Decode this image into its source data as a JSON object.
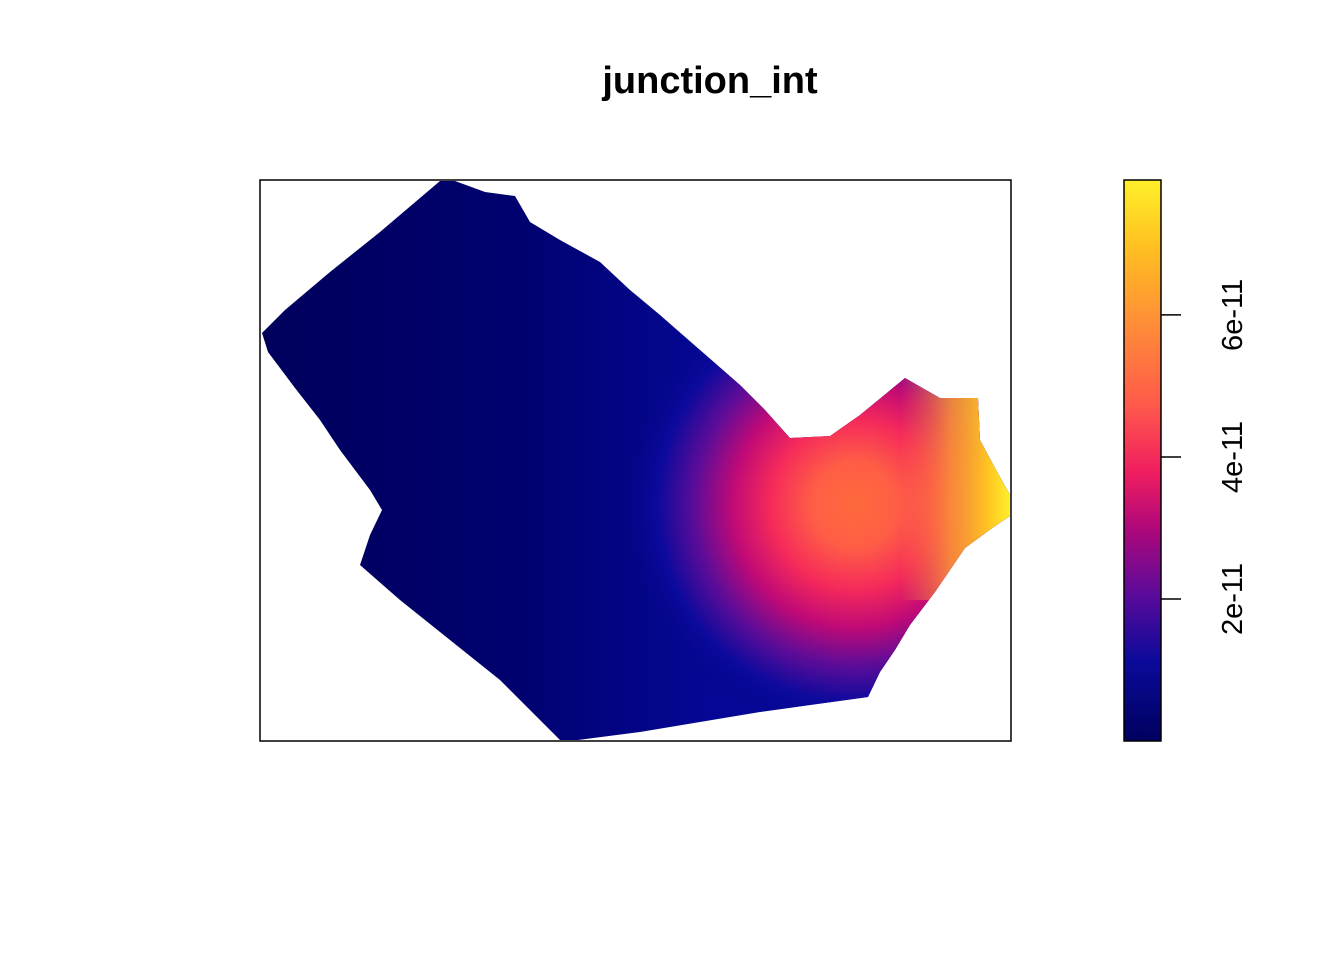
{
  "chart_data": {
    "type": "heatmap",
    "title": "junction_int",
    "xlabel": "",
    "ylabel": "",
    "axes_shown": false,
    "legend": {
      "type": "colorbar",
      "placement": "right",
      "range": [
        0,
        7.9e-11
      ],
      "ticks": [
        2e-11,
        4e-11,
        6e-11
      ],
      "tick_labels": [
        "2e-11",
        "4e-11",
        "6e-11"
      ]
    },
    "colormap": [
      "#00005E",
      "#0A0A9A",
      "#5A0A9A",
      "#B0087A",
      "#F01E60",
      "#FF5A4A",
      "#FF8C38",
      "#FFC020",
      "#FFF02A"
    ],
    "raster": {
      "description_of_field": "near zero over the western body, rising toward a hotspot in the east",
      "low_value": 1e-12,
      "hotspot_value": 5.3e-11,
      "max_value": 7.9e-11
    }
  }
}
